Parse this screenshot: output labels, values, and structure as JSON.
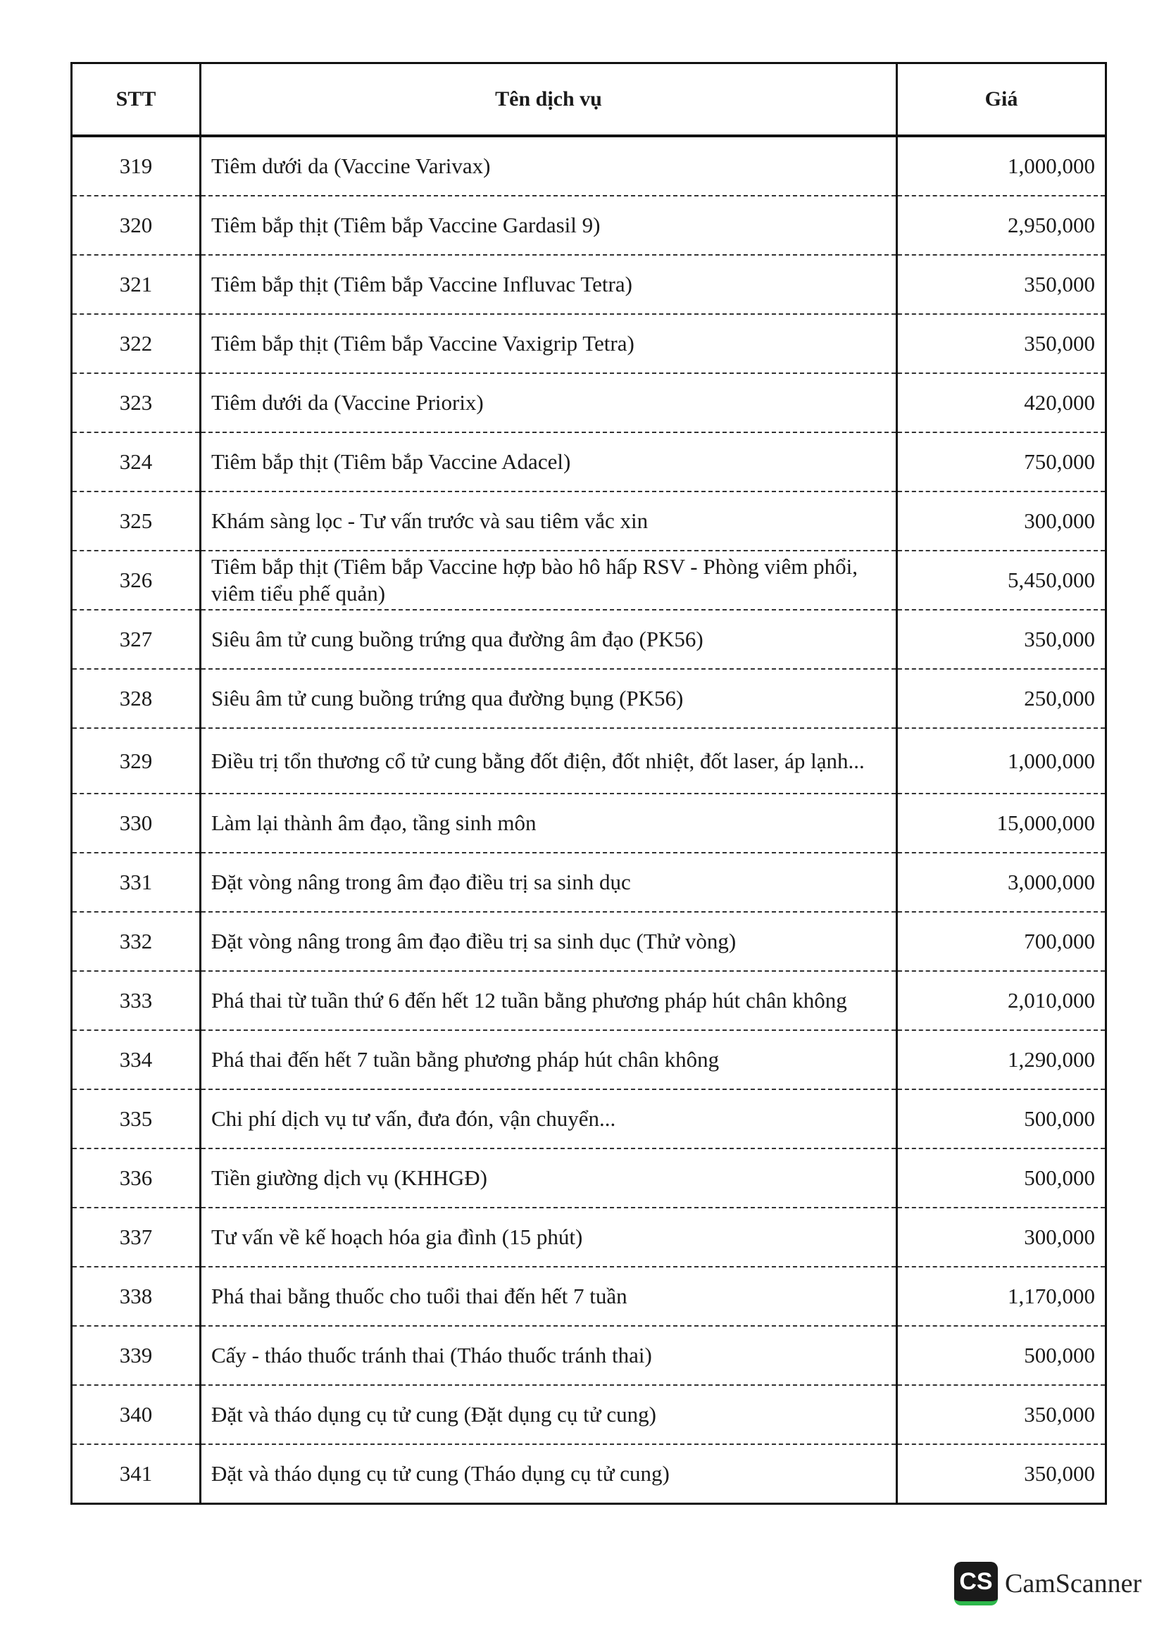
{
  "table": {
    "headers": {
      "stt": "STT",
      "name": "Tên dịch vụ",
      "price": "Giá"
    },
    "rows": [
      {
        "stt": "319",
        "name": "Tiêm dưới da (Vaccine Varivax)",
        "price": "1,000,000"
      },
      {
        "stt": "320",
        "name": "Tiêm bắp thịt (Tiêm bắp Vaccine Gardasil 9)",
        "price": "2,950,000"
      },
      {
        "stt": "321",
        "name": "Tiêm bắp thịt (Tiêm bắp Vaccine Influvac Tetra)",
        "price": "350,000"
      },
      {
        "stt": "322",
        "name": "Tiêm bắp thịt (Tiêm bắp Vaccine Vaxigrip Tetra)",
        "price": "350,000"
      },
      {
        "stt": "323",
        "name": "Tiêm dưới da (Vaccine Priorix)",
        "price": "420,000"
      },
      {
        "stt": "324",
        "name": "Tiêm bắp thịt (Tiêm bắp Vaccine Adacel)",
        "price": "750,000"
      },
      {
        "stt": "325",
        "name": "Khám sàng lọc - Tư vấn trước và sau tiêm vắc xin",
        "price": "300,000"
      },
      {
        "stt": "326",
        "name": "Tiêm bắp thịt (Tiêm bắp Vaccine hợp bào hô hấp RSV - Phòng viêm phổi, viêm tiểu phế quản)",
        "price": "5,450,000"
      },
      {
        "stt": "327",
        "name": "Siêu âm tử cung buồng trứng qua đường âm đạo (PK56)",
        "price": "350,000"
      },
      {
        "stt": "328",
        "name": "Siêu âm tử cung buồng trứng qua đường bụng (PK56)",
        "price": "250,000"
      },
      {
        "stt": "329",
        "name": "Điều trị tổn thương cổ tử cung bằng đốt điện, đốt nhiệt, đốt laser, áp lạnh...",
        "price": "1,000,000"
      },
      {
        "stt": "330",
        "name": "Làm lại thành âm đạo, tầng sinh môn",
        "price": "15,000,000"
      },
      {
        "stt": "331",
        "name": "Đặt vòng nâng trong âm đạo điều trị sa sinh dục",
        "price": "3,000,000"
      },
      {
        "stt": "332",
        "name": "Đặt vòng nâng trong âm đạo điều trị sa sinh dục (Thử vòng)",
        "price": "700,000"
      },
      {
        "stt": "333",
        "name": "Phá thai từ tuần thứ 6 đến hết 12 tuần bằng phương pháp hút chân không",
        "price": "2,010,000"
      },
      {
        "stt": "334",
        "name": "Phá thai đến hết 7 tuần bằng phương pháp hút chân không",
        "price": "1,290,000"
      },
      {
        "stt": "335",
        "name": "Chi phí dịch vụ tư vấn, đưa đón, vận chuyển...",
        "price": "500,000"
      },
      {
        "stt": "336",
        "name": "Tiền giường dịch vụ (KHHGĐ)",
        "price": "500,000"
      },
      {
        "stt": "337",
        "name": "Tư vấn về kế hoạch hóa gia đình (15 phút)",
        "price": "300,000"
      },
      {
        "stt": "338",
        "name": "Phá thai bằng thuốc cho tuổi thai đến hết 7 tuần",
        "price": "1,170,000"
      },
      {
        "stt": "339",
        "name": "Cấy - tháo thuốc tránh thai (Tháo thuốc tránh thai)",
        "price": "500,000"
      },
      {
        "stt": "340",
        "name": "Đặt và tháo dụng cụ tử cung (Đặt dụng cụ tử cung)",
        "price": "350,000"
      },
      {
        "stt": "341",
        "name": "Đặt và tháo dụng cụ tử cung (Tháo dụng cụ tử cung)",
        "price": "350,000"
      }
    ]
  },
  "watermark": {
    "badge": "CS",
    "text": "CamScanner",
    "accent": "#2db84b"
  }
}
